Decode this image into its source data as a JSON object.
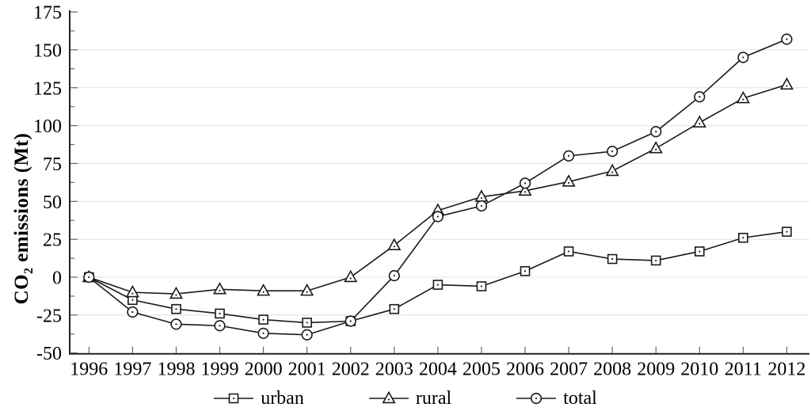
{
  "y_axis_title": {
    "before_sub": "CO",
    "subscript": "2",
    "after_sub": " emissions (Mt)"
  },
  "legend": {
    "items": [
      {
        "label": "urban",
        "marker": "square"
      },
      {
        "label": "rural",
        "marker": "triangle"
      },
      {
        "label": "total",
        "marker": "circle"
      }
    ]
  },
  "chart_data": {
    "type": "line",
    "title": "",
    "xlabel": "",
    "ylabel": "CO2 emissions (Mt)",
    "x_labels": [
      "1996",
      "1997",
      "1998",
      "1999",
      "2000",
      "2001",
      "2002",
      "2003",
      "2004",
      "2005",
      "2006",
      "2007",
      "2008",
      "2009",
      "2010",
      "2011",
      "2012"
    ],
    "ytick_labels": [
      "175",
      "150",
      "125",
      "100",
      "75",
      "50",
      "25",
      "0",
      "-25",
      "-50"
    ],
    "ylim": [
      -50,
      175
    ],
    "ytick_step": 25,
    "yminor_step": 12.5,
    "grid": "horizontal",
    "grid_values": [
      150,
      125,
      100,
      75,
      50,
      25,
      0,
      -25
    ],
    "legend_position": "bottom",
    "series": [
      {
        "name": "urban",
        "marker": "square",
        "values": [
          0,
          -15,
          -21,
          -24,
          -28,
          -30,
          -29,
          -21,
          -5,
          -6,
          4,
          17,
          12,
          11,
          17,
          26,
          30
        ]
      },
      {
        "name": "rural",
        "marker": "triangle",
        "values": [
          0,
          -10,
          -11,
          -8,
          -9,
          -9,
          0,
          21,
          44,
          53,
          57,
          63,
          70,
          85,
          102,
          118,
          127
        ]
      },
      {
        "name": "total",
        "marker": "circle",
        "values": [
          0,
          -23,
          -31,
          -32,
          -37,
          -38,
          -29,
          1,
          40,
          47,
          62,
          80,
          83,
          96,
          119,
          145,
          157
        ]
      }
    ],
    "colors": {
      "line": "#1a1a1a",
      "grid": "#e3e3e3",
      "tick": "#666666",
      "axis": "#222222",
      "marker_fill": "#ffffff",
      "text": "#000000"
    }
  }
}
